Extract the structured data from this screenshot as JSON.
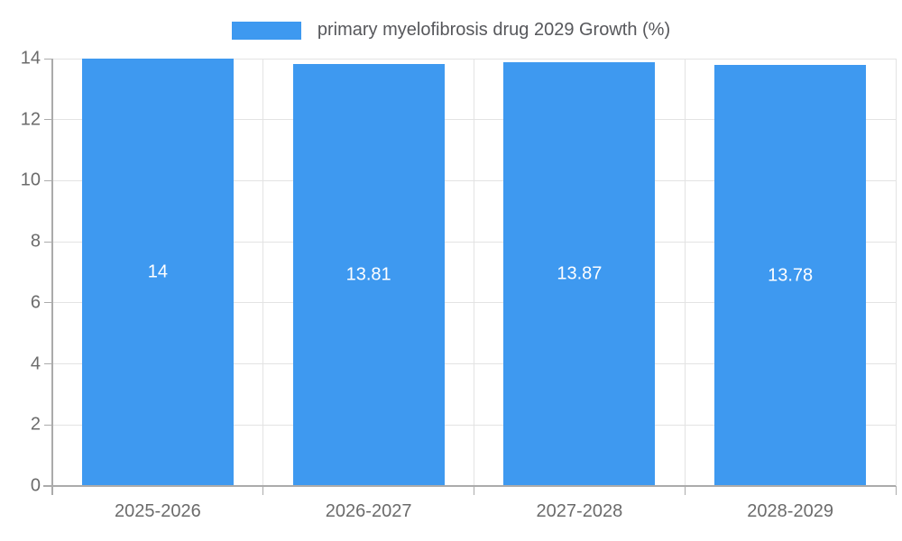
{
  "legend": {
    "label": "primary myelofibrosis drug 2029 Growth (%)"
  },
  "chart_data": {
    "type": "bar",
    "title": "primary myelofibrosis drug 2029 Growth (%)",
    "categories": [
      "2025-2026",
      "2026-2027",
      "2027-2028",
      "2028-2029"
    ],
    "values": [
      14,
      13.81,
      13.87,
      13.78
    ],
    "value_labels": [
      "14",
      "13.81",
      "13.87",
      "13.78"
    ],
    "xlabel": "",
    "ylabel": "",
    "ylim": [
      0,
      14
    ],
    "yticks": [
      0,
      2,
      4,
      6,
      8,
      10,
      12,
      14
    ],
    "grid": true,
    "legend_position": "top",
    "colors": {
      "bar": "#3E99F0",
      "grid": "#E3E3E3",
      "axis": "#ABABAB",
      "tick_label": "#6B6B6B",
      "legend_text": "#56575B",
      "value_label": "#FFFFFF",
      "background": "#FFFFFF"
    }
  }
}
